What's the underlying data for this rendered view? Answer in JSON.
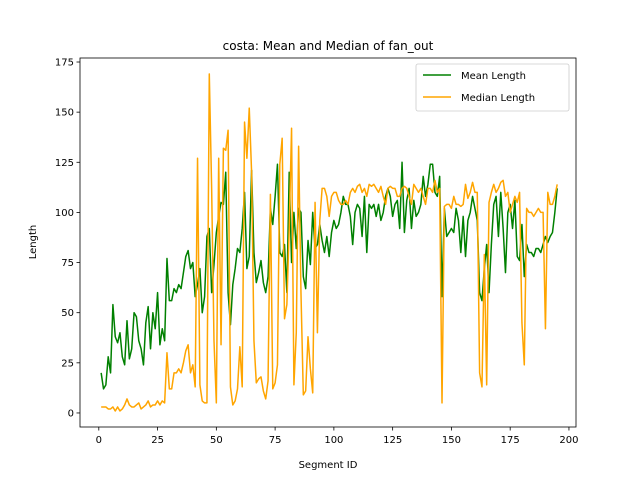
{
  "chart_data": {
    "type": "line",
    "title": "costa: Mean and Median of fan_out",
    "xlabel": "Segment ID",
    "ylabel": "Length",
    "xlim": [
      -8,
      203
    ],
    "ylim": [
      -7,
      177
    ],
    "xticks": [
      0,
      25,
      50,
      75,
      100,
      125,
      150,
      175,
      200
    ],
    "yticks": [
      0,
      25,
      50,
      75,
      100,
      125,
      150,
      175
    ],
    "grid": false,
    "legend_position": "top-right",
    "series": [
      {
        "name": "Mean Length",
        "color": "#008000",
        "x": [
          1,
          2,
          3,
          4,
          5,
          6,
          7,
          8,
          9,
          10,
          11,
          12,
          13,
          14,
          15,
          16,
          17,
          18,
          19,
          20,
          21,
          22,
          23,
          24,
          25,
          26,
          27,
          28,
          29,
          30,
          31,
          32,
          33,
          34,
          35,
          36,
          37,
          38,
          39,
          40,
          41,
          42,
          43,
          44,
          45,
          46,
          47,
          48,
          49,
          50,
          51,
          52,
          53,
          54,
          55,
          56,
          57,
          58,
          59,
          60,
          61,
          62,
          63,
          64,
          65,
          66,
          67,
          68,
          69,
          70,
          71,
          72,
          73,
          74,
          75,
          76,
          77,
          78,
          79,
          80,
          81,
          82,
          83,
          84,
          85,
          86,
          87,
          88,
          89,
          90,
          91,
          92,
          93,
          94,
          95,
          96,
          97,
          98,
          99,
          100,
          101,
          102,
          103,
          104,
          105,
          106,
          107,
          108,
          109,
          110,
          111,
          112,
          113,
          114,
          115,
          116,
          117,
          118,
          119,
          120,
          121,
          122,
          123,
          124,
          125,
          126,
          127,
          128,
          129,
          130,
          131,
          132,
          133,
          134,
          135,
          136,
          137,
          138,
          139,
          140,
          141,
          142,
          143,
          144,
          145,
          146,
          147,
          148,
          149,
          150,
          151,
          152,
          153,
          154,
          155,
          156,
          157,
          158,
          159,
          160,
          161,
          162,
          163,
          164,
          165,
          166,
          167,
          168,
          169,
          170,
          171,
          172,
          173,
          174,
          175,
          176,
          177,
          178,
          179,
          180,
          181,
          182,
          183,
          184,
          185,
          186,
          187,
          188,
          189,
          190,
          191,
          192,
          193,
          194,
          195
        ],
        "y": [
          20,
          12,
          14,
          28,
          20,
          54,
          38,
          35,
          40,
          28,
          24,
          46,
          27,
          32,
          50,
          48,
          36,
          32,
          24,
          45,
          53,
          32,
          50,
          42,
          60,
          34,
          42,
          36,
          77,
          56,
          56,
          62,
          60,
          64,
          62,
          70,
          78,
          81,
          72,
          75,
          58,
          64,
          72,
          50,
          58,
          88,
          92,
          60,
          74,
          90,
          98,
          105,
          104,
          120,
          60,
          44,
          64,
          72,
          82,
          80,
          92,
          110,
          72,
          78,
          121,
          80,
          65,
          70,
          76,
          65,
          60,
          68,
          102,
          94,
          108,
          124,
          80,
          78,
          84,
          60,
          120,
          75,
          100,
          82,
          102,
          100,
          68,
          62,
          86,
          74,
          100,
          82,
          84,
          94,
          86,
          80,
          88,
          78,
          90,
          96,
          92,
          94,
          100,
          108,
          104,
          104,
          98,
          84,
          100,
          104,
          102,
          88,
          108,
          80,
          104,
          102,
          104,
          98,
          104,
          96,
          100,
          108,
          112,
          108,
          98,
          104,
          106,
          92,
          125,
          90,
          106,
          112,
          92,
          106,
          98,
          100,
          104,
          118,
          108,
          114,
          124,
          124,
          110,
          108,
          118,
          58,
          102,
          88,
          90,
          92,
          90,
          102,
          96,
          80,
          98,
          78,
          96,
          100,
          108,
          102,
          96,
          60,
          56,
          72,
          84,
          60,
          84,
          104,
          108,
          88,
          110,
          92,
          70,
          100,
          104,
          92,
          106,
          78,
          76,
          94,
          68,
          84,
          80,
          80,
          78,
          82,
          82,
          80,
          84,
          88,
          85,
          88,
          90,
          100,
          112
        ]
      },
      {
        "name": "Median Length",
        "color": "#ffa500",
        "x": [
          1,
          2,
          3,
          4,
          5,
          6,
          7,
          8,
          9,
          10,
          11,
          12,
          13,
          14,
          15,
          16,
          17,
          18,
          19,
          20,
          21,
          22,
          23,
          24,
          25,
          26,
          27,
          28,
          29,
          30,
          31,
          32,
          33,
          34,
          35,
          36,
          37,
          38,
          39,
          40,
          41,
          42,
          43,
          44,
          45,
          46,
          47,
          48,
          49,
          50,
          51,
          52,
          53,
          54,
          55,
          56,
          57,
          58,
          59,
          60,
          61,
          62,
          63,
          64,
          65,
          66,
          67,
          68,
          69,
          70,
          71,
          72,
          73,
          74,
          75,
          76,
          77,
          78,
          79,
          80,
          81,
          82,
          83,
          84,
          85,
          86,
          87,
          88,
          89,
          90,
          91,
          92,
          93,
          94,
          95,
          96,
          97,
          98,
          99,
          100,
          101,
          102,
          103,
          104,
          105,
          106,
          107,
          108,
          109,
          110,
          111,
          112,
          113,
          114,
          115,
          116,
          117,
          118,
          119,
          120,
          121,
          122,
          123,
          124,
          125,
          126,
          127,
          128,
          129,
          130,
          131,
          132,
          133,
          134,
          135,
          136,
          137,
          138,
          139,
          140,
          141,
          142,
          143,
          144,
          145,
          146,
          147,
          148,
          149,
          150,
          151,
          152,
          153,
          154,
          155,
          156,
          157,
          158,
          159,
          160,
          161,
          162,
          163,
          164,
          165,
          166,
          167,
          168,
          169,
          170,
          171,
          172,
          173,
          174,
          175,
          176,
          177,
          178,
          179,
          180,
          181,
          182,
          183,
          184,
          185,
          186,
          187,
          188,
          189,
          190,
          191,
          192,
          193,
          194,
          195
        ],
        "y": [
          3,
          3,
          3,
          2,
          2,
          3,
          1,
          3,
          1,
          2,
          4,
          7,
          4,
          3,
          3,
          4,
          5,
          2,
          3,
          4,
          6,
          3,
          4,
          4,
          6,
          4,
          6,
          5,
          30,
          12,
          12,
          20,
          20,
          22,
          20,
          25,
          31,
          34,
          20,
          24,
          13,
          127,
          14,
          6,
          5,
          5,
          169,
          112,
          36,
          5,
          127,
          34,
          132,
          131,
          141,
          13,
          4,
          6,
          12,
          33,
          13,
          145,
          127,
          152,
          120,
          36,
          15,
          17,
          18,
          11,
          7,
          16,
          109,
          12,
          15,
          24,
          124,
          137,
          47,
          54,
          92,
          142,
          14,
          40,
          133,
          60,
          9,
          11,
          38,
          22,
          10,
          105,
          40,
          96,
          112,
          112,
          108,
          98,
          108,
          110,
          110,
          106,
          104,
          104,
          106,
          104,
          110,
          112,
          110,
          113,
          114,
          110,
          112,
          108,
          114,
          113,
          114,
          112,
          110,
          113,
          108,
          104,
          112,
          113,
          112,
          112,
          108,
          108,
          112,
          113,
          112,
          108,
          104,
          114,
          112,
          110,
          112,
          108,
          104,
          112,
          112,
          110,
          116,
          110,
          112,
          5,
          103,
          104,
          104,
          102,
          108,
          104,
          104,
          103,
          104,
          114,
          107,
          110,
          115,
          110,
          110,
          20,
          13,
          79,
          14,
          105,
          110,
          114,
          110,
          112,
          115,
          116,
          108,
          110,
          100,
          104,
          108,
          105,
          110,
          45,
          24,
          102,
          100,
          100,
          98,
          100,
          102,
          100,
          100,
          42,
          110,
          104,
          104,
          108,
          114
        ]
      }
    ]
  }
}
